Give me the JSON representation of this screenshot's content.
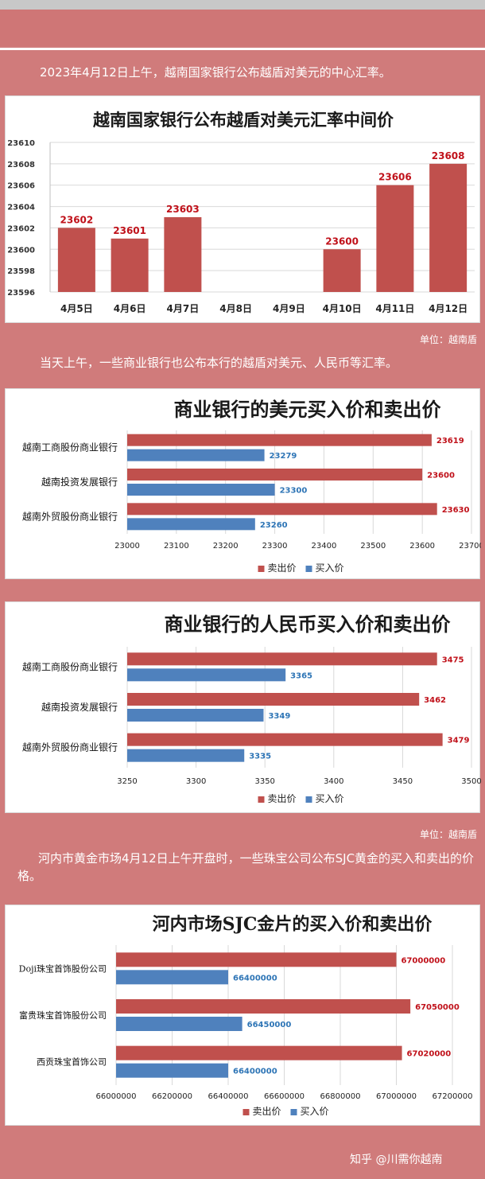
{
  "intro1": "2023年4月12日上午，越南国家银行公布越盾对美元的中心汇率。",
  "intro2": "当天上午，一些商业银行也公布本行的越盾对美元、人民币等汇率。",
  "intro3": "河内市黄金市场4月12日上午开盘时，一些珠宝公司公布SJC黄金的买入和卖出的价格。",
  "unit1": "单位：越南盾",
  "unit2": "单位：越南盾",
  "footer": "知乎 @川需你越南",
  "colors": {
    "sell": "#c0504d",
    "buy": "#4f81bd",
    "grid": "#d9d9d9"
  },
  "chart_data": [
    {
      "type": "bar",
      "title": "越南国家银行公布越盾对美元汇率中间价",
      "categories": [
        "4月5日",
        "4月6日",
        "4月7日",
        "4月8日",
        "4月9日",
        "4月10日",
        "4月11日",
        "4月12日"
      ],
      "values": [
        23602,
        23601,
        23603,
        null,
        null,
        23600,
        23606,
        23608
      ],
      "ylim": [
        23596,
        23610
      ],
      "yticks": [
        23596,
        23598,
        23600,
        23602,
        23604,
        23606,
        23608,
        23610
      ],
      "grid": true
    },
    {
      "type": "bar",
      "orientation": "horizontal",
      "title": "商业银行的美元买入价和卖出价",
      "categories": [
        "越南工商股份商业银行",
        "越南投资发展银行",
        "越南外贸股份商业银行"
      ],
      "series": [
        {
          "name": "卖出价",
          "values": [
            23619,
            23600,
            23630
          ]
        },
        {
          "name": "买入价",
          "values": [
            23279,
            23300,
            23260
          ]
        }
      ],
      "xlim": [
        23000,
        23700
      ],
      "xticks": [
        23000,
        23100,
        23200,
        23300,
        23400,
        23500,
        23600,
        23700
      ],
      "legend": "bottom"
    },
    {
      "type": "bar",
      "orientation": "horizontal",
      "title": "商业银行的人民币买入价和卖出价",
      "categories": [
        "越南工商股份商业银行",
        "越南投资发展银行",
        "越南外贸股份商业银行"
      ],
      "series": [
        {
          "name": "卖出价",
          "values": [
            3475,
            3462,
            3479
          ]
        },
        {
          "name": "买入价",
          "values": [
            3365,
            3349,
            3335
          ]
        }
      ],
      "xlim": [
        3250,
        3500
      ],
      "xticks": [
        3250,
        3300,
        3350,
        3400,
        3450,
        3500
      ],
      "legend": "bottom"
    },
    {
      "type": "bar",
      "orientation": "horizontal",
      "title": "河内市场SJC金片的买入价和卖出价",
      "categories": [
        "Doji珠宝首饰股份公司",
        "富贵珠宝首饰股份公司",
        "西贡珠宝首饰公司"
      ],
      "series": [
        {
          "name": "卖出价",
          "values": [
            67000000,
            67050000,
            67020000
          ]
        },
        {
          "name": "买入价",
          "values": [
            66400000,
            66450000,
            66400000
          ]
        }
      ],
      "xlim": [
        66000000,
        67200000
      ],
      "xticks": [
        66000000,
        66200000,
        66400000,
        66600000,
        66800000,
        67000000,
        67200000
      ],
      "legend": "bottom"
    }
  ]
}
